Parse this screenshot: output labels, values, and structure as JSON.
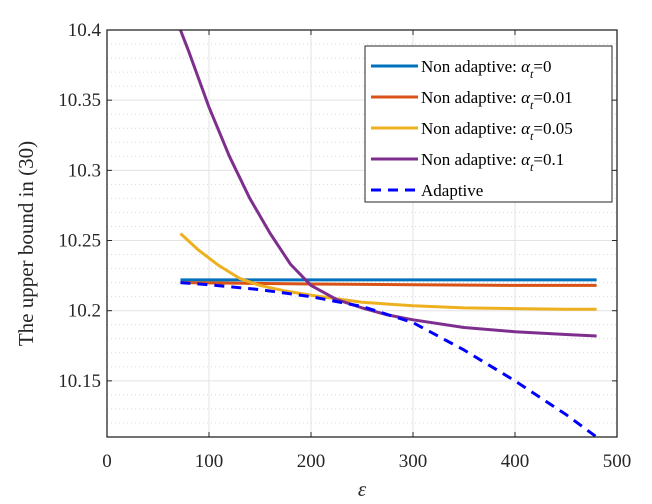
{
  "chart_data": {
    "type": "line",
    "title": "",
    "xlabel": "ε",
    "ylabel": "The upper bound in (30)",
    "xlim": [
      0,
      500
    ],
    "ylim": [
      10.11,
      10.4
    ],
    "xticks": [
      "0",
      "100",
      "200",
      "300",
      "400",
      "500"
    ],
    "yticks": [
      "10.15",
      "10.2",
      "10.25",
      "10.3",
      "10.35",
      "10.4"
    ],
    "grid": true,
    "legend_position": "top-right",
    "series": [
      {
        "name": "Non adaptive: α_t=0",
        "label_prefix": "Non adaptive: ",
        "alpha": "α",
        "sub": "t",
        "label_value": "=0",
        "color": "#0072BD",
        "dash": false,
        "x": [
          72,
          480
        ],
        "y": [
          10.222,
          10.222
        ]
      },
      {
        "name": "Non adaptive: α_t=0.01",
        "label_prefix": "Non adaptive: ",
        "alpha": "α",
        "sub": "t",
        "label_value": "=0.01",
        "color": "#D95319",
        "dash": false,
        "x": [
          72,
          200,
          300,
          400,
          480
        ],
        "y": [
          10.22,
          10.219,
          10.2185,
          10.218,
          10.218
        ]
      },
      {
        "name": "Non adaptive: α_t=0.05",
        "label_prefix": "Non adaptive: ",
        "alpha": "α",
        "sub": "t",
        "label_value": "=0.05",
        "color": "#EDB120",
        "dash": false,
        "x": [
          72,
          90,
          110,
          130,
          150,
          175,
          200,
          250,
          300,
          350,
          400,
          450,
          480
        ],
        "y": [
          10.255,
          10.243,
          10.232,
          10.223,
          10.218,
          10.214,
          10.211,
          10.206,
          10.2035,
          10.202,
          10.2015,
          10.201,
          10.201
        ]
      },
      {
        "name": "Non adaptive: α_t=0.1",
        "label_prefix": "Non adaptive: ",
        "alpha": "α",
        "sub": "t",
        "label_value": "=0.1",
        "color": "#7E2F8E",
        "dash": false,
        "x": [
          72,
          80,
          90,
          100,
          120,
          140,
          160,
          180,
          200,
          225,
          250,
          275,
          300,
          350,
          400,
          450,
          480
        ],
        "y": [
          10.4,
          10.385,
          10.365,
          10.345,
          10.31,
          10.28,
          10.255,
          10.233,
          10.218,
          10.208,
          10.202,
          10.197,
          10.1935,
          10.188,
          10.185,
          10.183,
          10.182
        ]
      },
      {
        "name": "Adaptive",
        "label_prefix": "Adaptive",
        "alpha": "",
        "sub": "",
        "label_value": "",
        "color": "#0000FF",
        "dash": true,
        "x": [
          72,
          100,
          150,
          200,
          250,
          300,
          350,
          400,
          450,
          480
        ],
        "y": [
          10.22,
          10.2185,
          10.215,
          10.21,
          10.203,
          10.1915,
          10.172,
          10.15,
          10.126,
          10.11
        ]
      }
    ]
  }
}
